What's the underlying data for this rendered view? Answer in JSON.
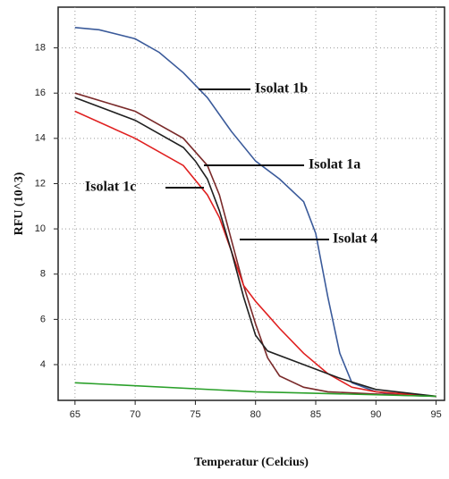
{
  "chart_data": {
    "type": "line",
    "x_label": "Temperatur (Celcius)",
    "y_label": "RFU (10^3)",
    "xlim": [
      63.6,
      95.7
    ],
    "ylim": [
      2.42,
      19.8
    ],
    "xticks": [
      65,
      70,
      75,
      80,
      85,
      90,
      95
    ],
    "yticks": [
      4,
      6,
      8,
      10,
      12,
      14,
      16,
      18
    ],
    "grid": true,
    "series": [
      {
        "name": "Isolat 1b",
        "color": "#3a5a9a",
        "x": [
          65,
          67,
          70,
          72,
          74,
          76,
          78,
          80,
          82,
          84,
          85,
          86,
          87,
          88,
          90,
          92,
          95
        ],
        "values": [
          18.9,
          18.8,
          18.4,
          17.8,
          16.9,
          15.8,
          14.3,
          13.0,
          12.2,
          11.2,
          9.8,
          7.0,
          4.5,
          3.2,
          2.8,
          2.65,
          2.6
        ]
      },
      {
        "name": "Isolat 1a",
        "color": "#7a2a2a",
        "x": [
          65,
          70,
          74,
          76,
          77,
          78,
          79,
          80,
          81,
          82,
          84,
          86,
          90,
          95
        ],
        "values": [
          16.0,
          15.2,
          14.0,
          12.8,
          11.5,
          9.5,
          7.5,
          5.8,
          4.3,
          3.5,
          3.0,
          2.8,
          2.7,
          2.6
        ]
      },
      {
        "name": "Isolat 1c",
        "color": "#e02020",
        "x": [
          65,
          70,
          74,
          76,
          77,
          78,
          79,
          80,
          81,
          82,
          84,
          86,
          88,
          90,
          95
        ],
        "values": [
          15.2,
          14.0,
          12.8,
          11.5,
          10.5,
          9.0,
          7.5,
          6.8,
          6.2,
          5.6,
          4.5,
          3.6,
          3.0,
          2.8,
          2.6
        ]
      },
      {
        "name": "Isolat 4",
        "color": "#202020",
        "x": [
          65,
          70,
          74,
          75,
          76,
          77,
          78,
          79,
          80,
          81,
          84,
          87,
          90,
          95
        ],
        "values": [
          15.8,
          14.8,
          13.6,
          13.0,
          12.2,
          10.8,
          9.0,
          7.0,
          5.3,
          4.6,
          4.0,
          3.4,
          2.9,
          2.6
        ]
      },
      {
        "color": "#2aa02a",
        "x": [
          65,
          80,
          95
        ],
        "values": [
          3.2,
          2.8,
          2.6
        ]
      }
    ]
  }
}
